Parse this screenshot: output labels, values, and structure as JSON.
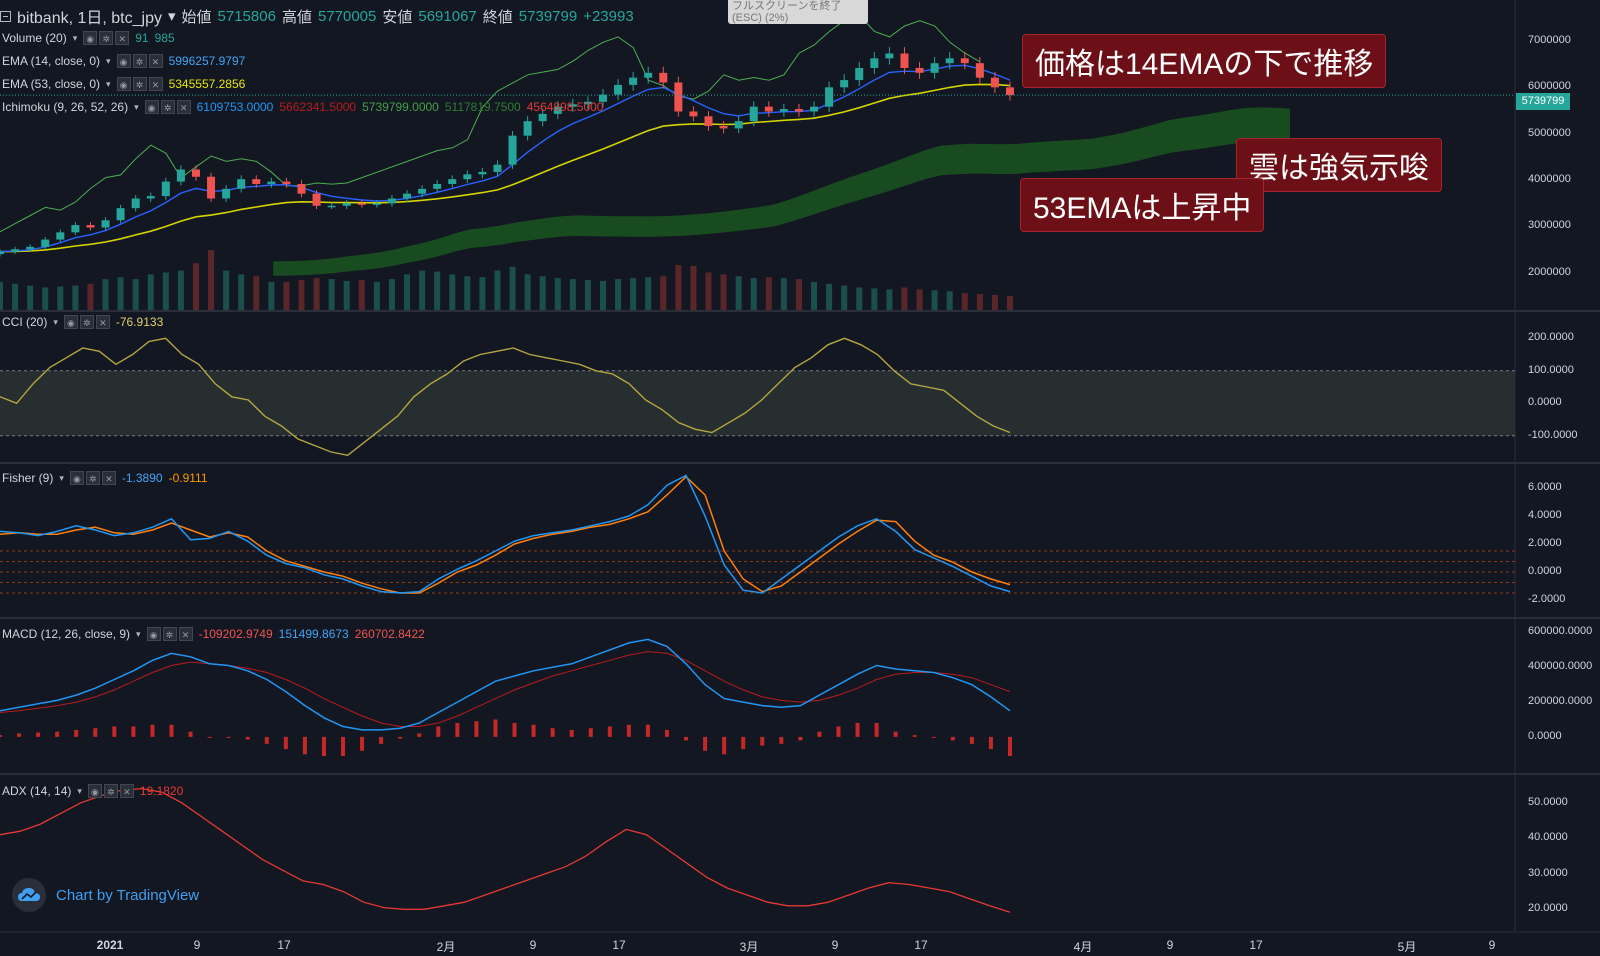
{
  "header": {
    "symbol": "bitbank, 1日, btc_jpy",
    "open_label": "始値",
    "open": "5715806",
    "high_label": "高値",
    "high": "5770005",
    "low_label": "安値",
    "low": "5691067",
    "close_label": "終値",
    "close": "5739799",
    "change": "+23993",
    "esc_text": "フルスクリーンを終了 (ESC)",
    "esc_pct": "(2%)"
  },
  "legends": {
    "volume": {
      "label": "Volume (20)",
      "v1": "91",
      "v2": "985"
    },
    "ema14": {
      "label": "EMA (14, close, 0)",
      "value": "5996257.9797"
    },
    "ema53": {
      "label": "EMA (53, close, 0)",
      "value": "5345557.2856"
    },
    "ichimoku": {
      "label": "Ichimoku (9, 26, 52, 26)",
      "v1": "6109753.0000",
      "v2": "5662341.5000",
      "v3": "5739799.0000",
      "v4": "5117819.7500",
      "v5": "4564898.5000"
    },
    "cci": {
      "label": "CCI (20)",
      "value": "-76.9133"
    },
    "fisher": {
      "label": "Fisher (9)",
      "v1": "-1.3890",
      "v2": "-0.9111"
    },
    "macd": {
      "label": "MACD (12, 26, close, 9)",
      "v1": "-109202.9749",
      "v2": "151499.8673",
      "v3": "260702.8422"
    },
    "adx": {
      "label": "ADX (14, 14)",
      "value": "19.1820"
    }
  },
  "callouts": {
    "c1": "価格は14EMAの下で推移",
    "c2": "雲は強気示唆",
    "c3": "53EMAは上昇中"
  },
  "price_tag": "5739799",
  "branding": "Chart by TradingView",
  "icon": "tradingview-cloud-icon",
  "colors": {
    "background": "#131722",
    "up": "#26a69a",
    "down": "#ef5350",
    "ema14": "#2962ff",
    "ema53": "#d4d400",
    "cloud": "#1b5e20",
    "chikou": "#4caf50",
    "cci": "#b5a642",
    "fisher": "#2196f3",
    "trigger": "#ff7f0e",
    "adx": "#e53935"
  },
  "axes": {
    "price_ticks": [
      "6000000",
      "7000000",
      "6000000",
      "5000000",
      "4000000",
      "3000000",
      "2000000"
    ],
    "cci_ticks": [
      "200.0000",
      "100.0000",
      "0.0000",
      "-100.0000"
    ],
    "fisher_ticks": [
      "6.0000",
      "4.0000",
      "2.0000",
      "0.0000",
      "-2.0000"
    ],
    "macd_ticks": [
      "600000.0000",
      "400000.0000",
      "200000.0000",
      "0.0000"
    ],
    "adx_ticks": [
      "50.0000",
      "40.0000",
      "30.0000",
      "20.0000"
    ],
    "x_ticks": [
      "2021",
      "9",
      "17",
      "2月",
      "9",
      "17",
      "3月",
      "9",
      "17",
      "4月",
      "9",
      "17",
      "5月",
      "9"
    ]
  },
  "chart_data": {
    "type": "line",
    "x_range": [
      "2020-12-24",
      "2021-03-24"
    ],
    "panels": [
      {
        "name": "price",
        "type": "candlestick",
        "ylim": [
          1500000,
          7500000
        ],
        "close": [
          2500000,
          2550000,
          2600000,
          2750000,
          2900000,
          3050000,
          3000000,
          3150000,
          3400000,
          3600000,
          3650000,
          3950000,
          4200000,
          4050000,
          3600000,
          3800000,
          4000000,
          3900000,
          3950000,
          3900000,
          3700000,
          3450000,
          3450000,
          3500000,
          3480000,
          3500000,
          3600000,
          3700000,
          3800000,
          3900000,
          4000000,
          4100000,
          4150000,
          4300000,
          4900000,
          5200000,
          5350000,
          5500000,
          5550000,
          5600000,
          5750000,
          5950000,
          6100000,
          6200000,
          6000000,
          5400000,
          5300000,
          5100000,
          5050000,
          5200000,
          5500000,
          5400000,
          5450000,
          5400000,
          5500000,
          5900000,
          6050000,
          6300000,
          6500000,
          6600000,
          6300000,
          6200000,
          6400000,
          6500000,
          6400000,
          6100000,
          5900000,
          5740000
        ],
        "volume": [
          300,
          280,
          260,
          240,
          250,
          260,
          280,
          330,
          350,
          330,
          380,
          400,
          420,
          500,
          640,
          420,
          380,
          360,
          300,
          300,
          320,
          340,
          330,
          310,
          320,
          300,
          330,
          380,
          420,
          410,
          380,
          360,
          350,
          420,
          460,
          380,
          360,
          340,
          330,
          320,
          310,
          330,
          340,
          350,
          360,
          480,
          470,
          400,
          380,
          360,
          340,
          350,
          340,
          330,
          300,
          280,
          260,
          240,
          230,
          220,
          240,
          220,
          210,
          200,
          180,
          170,
          160,
          150
        ]
      },
      {
        "name": "CCI",
        "ylim": [
          -150,
          250
        ],
        "values": [
          20,
          0,
          60,
          110,
          140,
          170,
          160,
          120,
          150,
          190,
          200,
          150,
          120,
          60,
          20,
          10,
          -40,
          -70,
          -110,
          -130,
          -150,
          -160,
          -120,
          -80,
          -40,
          20,
          60,
          90,
          130,
          150,
          160,
          170,
          150,
          140,
          130,
          120,
          100,
          90,
          60,
          10,
          -20,
          -60,
          -80,
          -90,
          -60,
          -30,
          10,
          60,
          110,
          140,
          180,
          200,
          180,
          150,
          100,
          60,
          50,
          40,
          0,
          -40,
          -70,
          -90
        ]
      },
      {
        "name": "Fisher",
        "ylim": [
          -2.5,
          7
        ],
        "fisher": [
          2.9,
          2.8,
          2.6,
          2.9,
          3.3,
          3.0,
          2.6,
          2.8,
          3.2,
          3.8,
          2.3,
          2.4,
          2.9,
          2.2,
          1.2,
          0.6,
          0.3,
          -0.2,
          -0.5,
          -1.0,
          -1.4,
          -1.5,
          -1.4,
          -0.5,
          0.2,
          0.8,
          1.5,
          2.2,
          2.6,
          2.8,
          3.0,
          3.3,
          3.6,
          4.0,
          4.8,
          6.2,
          6.9,
          4.0,
          0.5,
          -1.3,
          -1.5,
          -0.5,
          0.5,
          1.5,
          2.5,
          3.3,
          3.8,
          2.9,
          1.6,
          1.0,
          0.4,
          -0.3,
          -1.0,
          -1.4
        ],
        "trigger": [
          2.7,
          2.8,
          2.7,
          2.7,
          3.0,
          3.2,
          2.8,
          2.7,
          3.0,
          3.5,
          3.0,
          2.5,
          2.8,
          2.5,
          1.5,
          0.8,
          0.4,
          0.0,
          -0.3,
          -0.8,
          -1.2,
          -1.5,
          -1.5,
          -0.8,
          0.0,
          0.5,
          1.2,
          2.0,
          2.4,
          2.7,
          2.9,
          3.2,
          3.4,
          3.8,
          4.3,
          5.5,
          6.8,
          5.5,
          1.5,
          -0.5,
          -1.4,
          -1.0,
          0.0,
          1.0,
          2.0,
          2.9,
          3.7,
          3.6,
          2.2,
          1.2,
          0.7,
          0.0,
          -0.5,
          -0.9
        ]
      },
      {
        "name": "MACD",
        "ylim": [
          -150000,
          620000
        ],
        "macd": [
          150000,
          170000,
          190000,
          210000,
          240000,
          280000,
          330000,
          380000,
          440000,
          480000,
          460000,
          420000,
          410000,
          380000,
          330000,
          260000,
          180000,
          110000,
          60000,
          40000,
          40000,
          50000,
          80000,
          140000,
          200000,
          260000,
          320000,
          350000,
          380000,
          400000,
          420000,
          460000,
          500000,
          540000,
          560000,
          520000,
          420000,
          300000,
          220000,
          200000,
          180000,
          170000,
          180000,
          240000,
          300000,
          360000,
          410000,
          390000,
          380000,
          370000,
          340000,
          300000,
          230000,
          150000
        ],
        "signal": [
          140000,
          150000,
          165000,
          180000,
          200000,
          230000,
          270000,
          320000,
          370000,
          410000,
          430000,
          420000,
          410000,
          395000,
          370000,
          330000,
          280000,
          220000,
          170000,
          120000,
          80000,
          60000,
          60000,
          80000,
          120000,
          170000,
          220000,
          270000,
          310000,
          350000,
          380000,
          410000,
          440000,
          470000,
          490000,
          480000,
          440000,
          380000,
          320000,
          270000,
          230000,
          210000,
          200000,
          210000,
          240000,
          280000,
          330000,
          360000,
          370000,
          370000,
          360000,
          340000,
          300000,
          260000
        ],
        "histogram": [
          10000,
          20000,
          25000,
          30000,
          40000,
          50000,
          60000,
          60000,
          70000,
          70000,
          30000,
          0,
          0,
          -15000,
          -40000,
          -70000,
          -100000,
          -110000,
          -110000,
          -80000,
          -40000,
          -10000,
          20000,
          60000,
          80000,
          90000,
          100000,
          80000,
          70000,
          50000,
          40000,
          50000,
          60000,
          70000,
          70000,
          40000,
          -20000,
          -80000,
          -100000,
          -70000,
          -50000,
          -40000,
          -20000,
          30000,
          60000,
          80000,
          80000,
          30000,
          10000,
          0,
          -20000,
          -40000,
          -70000,
          -110000
        ]
      },
      {
        "name": "ADX",
        "ylim": [
          17,
          55
        ],
        "values": [
          41,
          42,
          44,
          47,
          50,
          52,
          53.5,
          54,
          53,
          50,
          46,
          42,
          38,
          34,
          31,
          28,
          27,
          25,
          22,
          20.5,
          20,
          20,
          21,
          22,
          24,
          26,
          28,
          30,
          32,
          35,
          39,
          42.5,
          41,
          37,
          33,
          29,
          26,
          24,
          22,
          21,
          21,
          22,
          24,
          26,
          27.5,
          27,
          26,
          25,
          23,
          21,
          19.2
        ]
      }
    ]
  }
}
